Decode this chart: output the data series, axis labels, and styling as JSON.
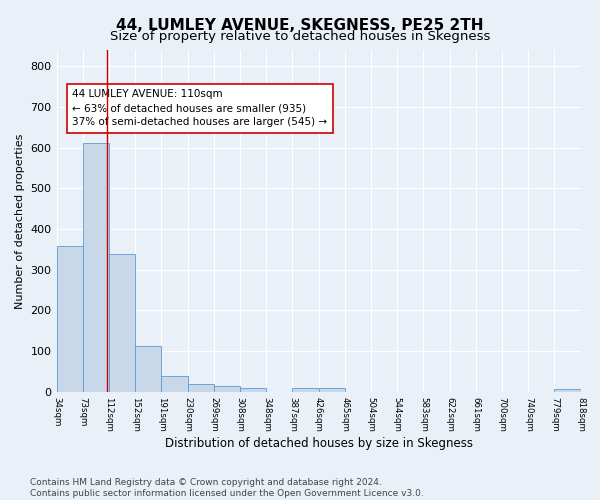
{
  "title": "44, LUMLEY AVENUE, SKEGNESS, PE25 2TH",
  "subtitle": "Size of property relative to detached houses in Skegness",
  "xlabel": "Distribution of detached houses by size in Skegness",
  "ylabel": "Number of detached properties",
  "bar_edges": [
    34,
    73,
    112,
    152,
    191,
    230,
    269,
    308,
    348,
    387,
    426,
    465,
    504,
    544,
    583,
    622,
    661,
    700,
    740,
    779,
    818
  ],
  "bar_heights": [
    357,
    612,
    338,
    113,
    38,
    20,
    15,
    10,
    0,
    8,
    8,
    0,
    0,
    0,
    0,
    0,
    0,
    0,
    0,
    7,
    0
  ],
  "bar_color": "#c8d8e8",
  "bar_edgecolor": "#5b9bd5",
  "vline_x": 110,
  "vline_color": "#cc0000",
  "annotation_text": "44 LUMLEY AVENUE: 110sqm\n← 63% of detached houses are smaller (935)\n37% of semi-detached houses are larger (545) →",
  "annotation_box_edgecolor": "#cc0000",
  "annotation_box_facecolor": "#ffffff",
  "ylim": [
    0,
    840
  ],
  "yticks": [
    0,
    100,
    200,
    300,
    400,
    500,
    600,
    700,
    800
  ],
  "tick_labels": [
    "34sqm",
    "73sqm",
    "112sqm",
    "152sqm",
    "191sqm",
    "230sqm",
    "269sqm",
    "308sqm",
    "348sqm",
    "387sqm",
    "426sqm",
    "465sqm",
    "504sqm",
    "544sqm",
    "583sqm",
    "622sqm",
    "661sqm",
    "700sqm",
    "740sqm",
    "779sqm",
    "818sqm"
  ],
  "footer": "Contains HM Land Registry data © Crown copyright and database right 2024.\nContains public sector information licensed under the Open Government Licence v3.0.",
  "bg_color": "#eaf0f8",
  "plot_bg_color": "#eaf0f8",
  "title_fontsize": 11,
  "subtitle_fontsize": 9.5,
  "xlabel_fontsize": 8.5,
  "ylabel_fontsize": 8,
  "footer_fontsize": 6.5,
  "annotation_fontsize": 7.5
}
